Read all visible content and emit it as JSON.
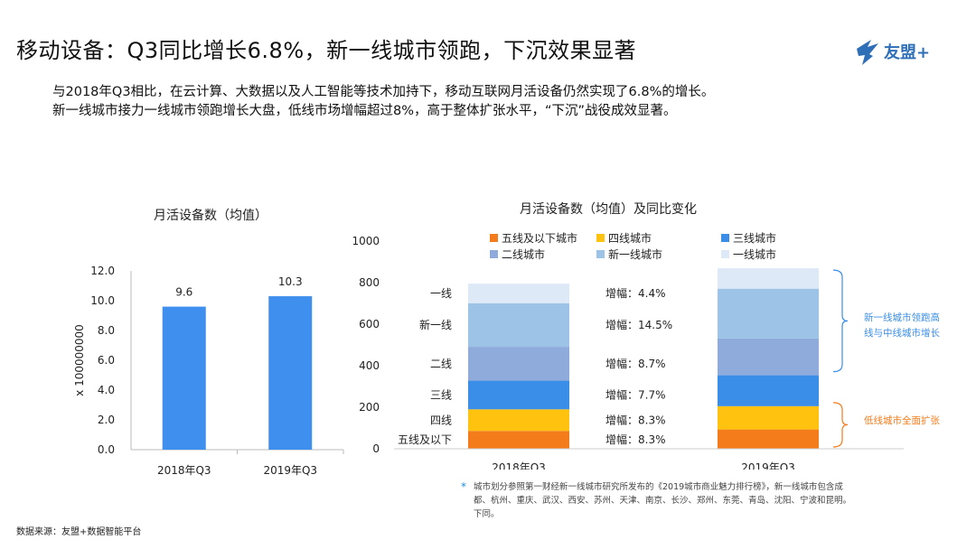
{
  "header": {
    "title": "移动设备：Q3同比增长6.8%，新一线城市领跑，下沉效果显著",
    "logo_text": "友盟+"
  },
  "intro": {
    "line1": "与2018年Q3相比，在云计算、大数据以及人工智能等技术加持下，移动互联网月活设备仍然实现了6.8%的增长。",
    "line2": "新一线城市接力一线城市领跑增长大盘，低线市场增幅超过8%，高于整体扩张水平，“下沉”战役成效显著。"
  },
  "colors": {
    "bar_blue": "#3e8fee",
    "tier5": "#f47c1b",
    "tier4": "#ffc20e",
    "tier3": "#3a8ee8",
    "tier2": "#8eabdc",
    "new_tier1": "#9dc3e6",
    "tier1": "#dde9f7",
    "brace_blue": "#3a8ee8",
    "brace_orange": "#f47c1b"
  },
  "chart_data": [
    {
      "type": "bar",
      "title": "月活设备数（均值）",
      "ylabel": "x 100000000",
      "categories": [
        "2018年Q3",
        "2019年Q3"
      ],
      "values": [
        9.6,
        10.3
      ],
      "value_labels": [
        "9.6",
        "10.3"
      ],
      "ylim": [
        0,
        12
      ],
      "yticks": [
        "0.0",
        "2.0",
        "4.0",
        "6.0",
        "8.0",
        "10.0",
        "12.0"
      ],
      "grid": false
    },
    {
      "type": "bar",
      "stacked": true,
      "title": "月活设备数（均值）及同比变化",
      "categories": [
        "2018年Q3",
        "2019年Q3"
      ],
      "ylim": [
        0,
        1000
      ],
      "yticks": [
        "0",
        "200",
        "400",
        "600",
        "800",
        "1000"
      ],
      "legend": [
        "五线及以下城市",
        "四线城市",
        "三线城市",
        "二线城市",
        "新一线城市",
        "一线城市"
      ],
      "legend_position": "top",
      "series": [
        {
          "name": "五线及以下城市",
          "axis_label": "五线及以下",
          "values": [
            86,
            93
          ],
          "growth": "增幅：8.3%"
        },
        {
          "name": "四线城市",
          "axis_label": "四线",
          "values": [
            104,
            112
          ],
          "growth": "增幅：8.3%"
        },
        {
          "name": "三线城市",
          "axis_label": "三线",
          "values": [
            138,
            149
          ],
          "growth": "增幅：7.7%"
        },
        {
          "name": "二线城市",
          "axis_label": "二线",
          "values": [
            163,
            177
          ],
          "growth": "增幅：8.7%"
        },
        {
          "name": "新一线城市",
          "axis_label": "新一线",
          "values": [
            210,
            240
          ],
          "growth": "增幅：14.5%"
        },
        {
          "name": "一线城市",
          "axis_label": "一线",
          "values": [
            94,
            98
          ],
          "growth": "增幅：4.4%"
        }
      ],
      "annotations": {
        "upper_note": "新一线城市领跑高线与中线城市增长",
        "lower_note": "低线城市全面扩张"
      }
    }
  ],
  "footnote": "城市划分参照第一财经新一线城市研究所发布的《2019城市商业魅力排行榜》，新一线城市包含成都、杭州、重庆、武汉、西安、苏州、天津、南京、长沙、郑州、东莞、青岛、沈阳、宁波和昆明。下同。",
  "footnote_mark": "*",
  "source": "数据来源：友盟+数据智能平台"
}
